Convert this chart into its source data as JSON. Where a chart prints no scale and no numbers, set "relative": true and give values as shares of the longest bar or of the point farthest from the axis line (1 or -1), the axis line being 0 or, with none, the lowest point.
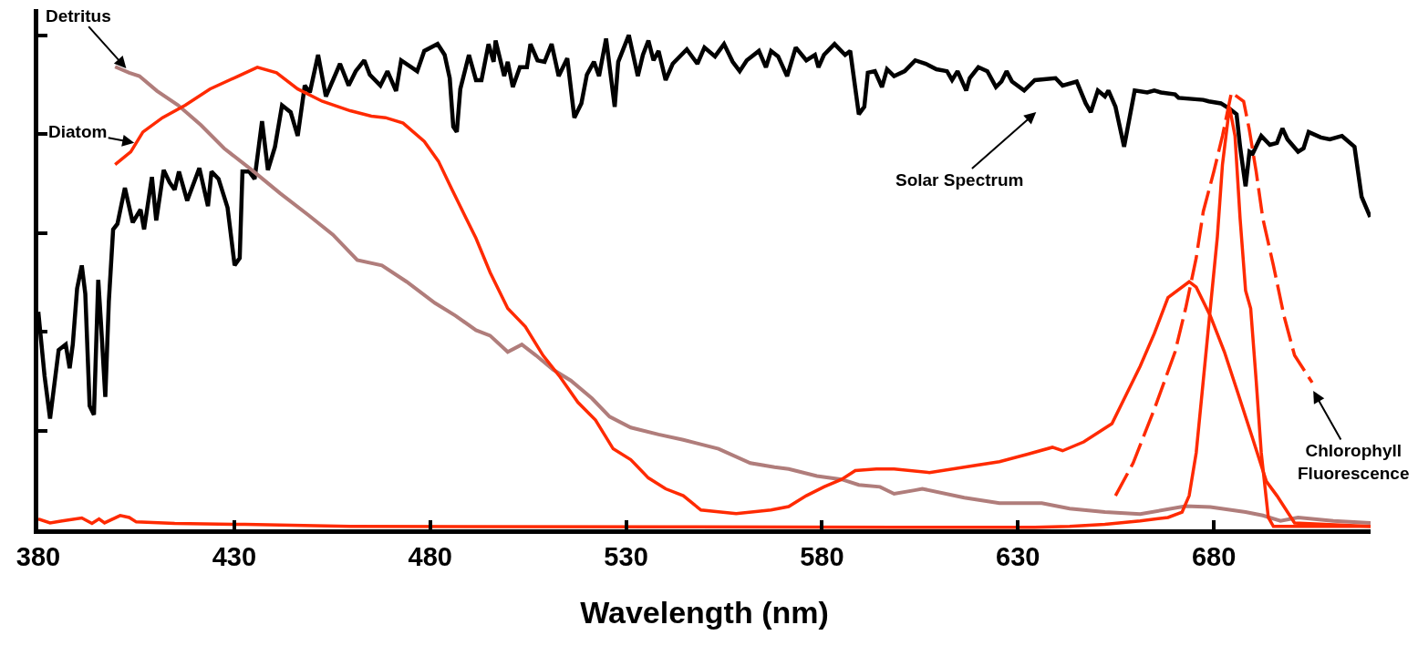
{
  "chart_data": {
    "type": "line",
    "relative": true,
    "xlabel": "Wavelength (nm)",
    "xlim": [
      380,
      720
    ],
    "xticks": [
      380,
      430,
      480,
      530,
      580,
      630,
      680
    ],
    "marker": "none",
    "line_style": "solid",
    "annotations": [
      "Detritus",
      "Diatom",
      "Solar Spectrum",
      "Chlorophyll\nFluorescence"
    ],
    "series": [
      {
        "color": "#000000",
        "x": [
          380,
          381.6,
          383,
          385.2,
          387,
          388,
          388.8,
          389.9,
          391.1,
          392,
          393.1,
          394.2,
          395.3,
          396,
          397.1,
          398,
          399.1,
          400.2,
          402.1,
          404.1,
          406.1,
          407,
          409,
          410.1,
          412,
          413.5,
          414.8,
          415.9,
          418,
          421.1,
          423.3,
          424.2,
          426,
          428.3,
          430.1,
          431.4,
          432.1,
          433.8,
          435.2,
          437.1,
          438.6,
          440.4,
          442.2,
          444.4,
          446.2,
          448,
          449.3,
          451.4,
          453.4,
          457,
          459.2,
          461,
          463.2,
          464.6,
          467.3,
          469.1,
          471.3,
          472.6,
          476.7,
          478.5,
          481.9,
          483.7,
          485,
          485.9,
          486.8,
          487.7,
          489.9,
          491.7,
          493.1,
          494.9,
          496.2,
          496.7,
          498.9,
          499.8,
          501.1,
          502.9,
          504.7,
          505.6,
          507.4,
          509.2,
          511,
          512.8,
          515,
          516.8,
          518.6,
          520,
          521.8,
          523.1,
          524.9,
          527.1,
          528,
          530.7,
          533,
          534.3,
          535.7,
          537,
          538.3,
          540.1,
          541.9,
          545.5,
          548.2,
          550,
          552.7,
          555,
          557.2,
          559,
          560.8,
          563.9,
          565.7,
          567,
          568.8,
          571.1,
          573.3,
          576,
          578.2,
          579.1,
          580.5,
          583.2,
          585.9,
          587.2,
          589.4,
          590.8,
          591.7,
          593.5,
          595.3,
          596.6,
          598.4,
          601.1,
          603.8,
          606.5,
          609.2,
          611.9,
          613.2,
          614.6,
          616.8,
          617.7,
          619.9,
          622.2,
          624.4,
          625.8,
          627.1,
          628.5,
          631.6,
          634.3,
          639.6,
          641.4,
          645,
          647.3,
          648.6,
          650.4,
          652.2,
          653.1,
          654.9,
          657.1,
          659.8,
          663,
          664.8,
          666.5,
          670.1,
          671,
          677.3,
          678.7,
          681.8,
          684,
          685.8,
          686.7,
          688.1,
          689.1,
          689.9,
          692.1,
          694.3,
          696.1,
          697.5,
          698.8,
          701.5,
          702.9,
          704.2,
          707.3,
          709.6,
          712.7,
          715.9,
          717.7,
          719.9
        ],
        "values": [
          0.44,
          0.31,
          0.224,
          0.363,
          0.374,
          0.326,
          0.374,
          0.487,
          0.534,
          0.476,
          0.25,
          0.232,
          0.505,
          0.417,
          0.268,
          0.461,
          0.607,
          0.618,
          0.691,
          0.621,
          0.647,
          0.607,
          0.713,
          0.625,
          0.727,
          0.702,
          0.687,
          0.724,
          0.665,
          0.731,
          0.654,
          0.724,
          0.709,
          0.651,
          0.534,
          0.549,
          0.724,
          0.724,
          0.709,
          0.826,
          0.727,
          0.774,
          0.858,
          0.844,
          0.796,
          0.898,
          0.884,
          0.96,
          0.876,
          0.942,
          0.898,
          0.927,
          0.949,
          0.92,
          0.898,
          0.927,
          0.887,
          0.949,
          0.927,
          0.968,
          0.982,
          0.96,
          0.913,
          0.815,
          0.804,
          0.891,
          0.96,
          0.909,
          0.909,
          0.982,
          0.946,
          0.989,
          0.917,
          0.946,
          0.895,
          0.935,
          0.935,
          0.982,
          0.949,
          0.946,
          0.982,
          0.917,
          0.953,
          0.833,
          0.862,
          0.92,
          0.946,
          0.917,
          0.993,
          0.855,
          0.946,
          1.0,
          0.917,
          0.96,
          0.989,
          0.949,
          0.968,
          0.909,
          0.942,
          0.971,
          0.942,
          0.975,
          0.957,
          0.982,
          0.946,
          0.927,
          0.949,
          0.968,
          0.935,
          0.968,
          0.957,
          0.917,
          0.975,
          0.949,
          0.96,
          0.935,
          0.96,
          0.982,
          0.96,
          0.968,
          0.84,
          0.855,
          0.924,
          0.927,
          0.895,
          0.931,
          0.917,
          0.927,
          0.949,
          0.942,
          0.931,
          0.927,
          0.909,
          0.927,
          0.888,
          0.913,
          0.935,
          0.927,
          0.895,
          0.906,
          0.927,
          0.906,
          0.888,
          0.909,
          0.913,
          0.898,
          0.906,
          0.862,
          0.844,
          0.888,
          0.876,
          0.888,
          0.855,
          0.774,
          0.888,
          0.884,
          0.888,
          0.884,
          0.88,
          0.873,
          0.869,
          0.866,
          0.862,
          0.851,
          0.84,
          0.774,
          0.694,
          0.764,
          0.76,
          0.796,
          0.778,
          0.782,
          0.811,
          0.789,
          0.764,
          0.771,
          0.804,
          0.793,
          0.789,
          0.796,
          0.774,
          0.673,
          0.632
        ]
      },
      {
        "color": "#b07d7b",
        "x": [
          399.6,
          403.2,
          405.8,
          410.3,
          415.7,
          421.5,
          427.4,
          434.5,
          441.7,
          448.9,
          455.2,
          461.4,
          467.7,
          474,
          481.2,
          486.5,
          491.7,
          495.3,
          499.8,
          503.4,
          507,
          511.4,
          515.9,
          521.3,
          525.8,
          531.2,
          538.3,
          544.6,
          553.6,
          561.7,
          567.9,
          571.5,
          578.7,
          585,
          589.4,
          594.8,
          598.4,
          603.6,
          605.6,
          616.3,
          625.3,
          636.1,
          643.2,
          652.2,
          661.2,
          672.8,
          679.1,
          688.1,
          692.5,
          697,
          701.5,
          710.5,
          720
        ],
        "values": [
          0.936,
          0.924,
          0.917,
          0.887,
          0.858,
          0.818,
          0.771,
          0.727,
          0.68,
          0.636,
          0.596,
          0.545,
          0.534,
          0.501,
          0.458,
          0.432,
          0.403,
          0.392,
          0.359,
          0.374,
          0.352,
          0.323,
          0.301,
          0.265,
          0.228,
          0.206,
          0.192,
          0.181,
          0.163,
          0.134,
          0.126,
          0.122,
          0.108,
          0.101,
          0.09,
          0.086,
          0.072,
          0.079,
          0.082,
          0.064,
          0.053,
          0.053,
          0.042,
          0.035,
          0.031,
          0.047,
          0.045,
          0.035,
          0.028,
          0.017,
          0.024,
          0.017,
          0.013
        ]
      },
      {
        "color": "#ff2a00",
        "x": [
          399.6,
          403.6,
          406.7,
          411.7,
          417.5,
          423.8,
          431,
          435.9,
          440.8,
          446.2,
          452.5,
          459.6,
          465,
          468.6,
          473.1,
          478.5,
          482.1,
          485.6,
          489.2,
          491.7,
          495.3,
          499.8,
          504.3,
          508.8,
          513.2,
          517.7,
          522.2,
          526.7,
          531.2,
          535.7,
          540.1,
          544.6,
          549.1,
          558.1,
          567,
          571.5,
          576,
          580.5,
          585,
          588.5,
          593.9,
          598.4,
          607.4,
          616.3,
          625.3,
          632.5,
          638.8,
          641.4,
          646.8,
          654,
          657.6,
          661.2,
          664.8,
          668.3,
          673.7,
          675.5,
          679.1,
          682.7,
          686.3,
          689.9,
          693.4,
          696.1,
          700.6,
          720
        ],
        "values": [
          0.738,
          0.764,
          0.804,
          0.833,
          0.858,
          0.891,
          0.917,
          0.935,
          0.924,
          0.891,
          0.866,
          0.847,
          0.836,
          0.833,
          0.822,
          0.785,
          0.745,
          0.687,
          0.629,
          0.589,
          0.52,
          0.447,
          0.41,
          0.352,
          0.308,
          0.257,
          0.221,
          0.163,
          0.141,
          0.104,
          0.082,
          0.068,
          0.039,
          0.032,
          0.039,
          0.046,
          0.068,
          0.086,
          0.101,
          0.119,
          0.122,
          0.122,
          0.115,
          0.126,
          0.137,
          0.152,
          0.166,
          0.159,
          0.177,
          0.214,
          0.272,
          0.33,
          0.396,
          0.469,
          0.501,
          0.49,
          0.432,
          0.359,
          0.272,
          0.184,
          0.097,
          0.068,
          0.013,
          0.006
        ]
      },
      {
        "color": "#ff2a00",
        "line_style": "dashed",
        "x": [
          654.9,
          659.4,
          664.8,
          670.1,
          672.8,
          675.5,
          677.3,
          680,
          682.2,
          684.5,
          687.6,
          689,
          690.8,
          692.5,
          695.2,
          697.9,
          700.6,
          705.1
        ],
        "values": [
          0.068,
          0.134,
          0.243,
          0.359,
          0.447,
          0.549,
          0.643,
          0.724,
          0.796,
          0.884,
          0.866,
          0.811,
          0.724,
          0.629,
          0.534,
          0.432,
          0.352,
          0.297
        ]
      },
      {
        "color": "#ff2a00",
        "x": [
          380,
          383,
          386.1,
          391.1,
          393.7,
          395.5,
          396.9,
          400.9,
          403.2,
          405,
          414.8,
          432.7,
          459.6,
          540,
          598.4,
          634.3,
          643.2,
          652.2,
          661.2,
          668.3,
          671.9,
          673.7,
          675.5,
          677.3,
          679.1,
          680.9,
          682.2,
          684,
          685.4,
          686.7,
          688.1,
          689.4,
          690.8,
          692.1,
          693.9,
          695.2,
          720
        ],
        "values": [
          0.021,
          0.013,
          0.017,
          0.023,
          0.012,
          0.021,
          0.013,
          0.028,
          0.024,
          0.015,
          0.012,
          0.01,
          0.006,
          0.005,
          0.004,
          0.004,
          0.006,
          0.01,
          0.017,
          0.024,
          0.035,
          0.068,
          0.155,
          0.301,
          0.447,
          0.592,
          0.738,
          0.855,
          0.796,
          0.629,
          0.483,
          0.447,
          0.301,
          0.155,
          0.024,
          0.006,
          0.006
        ]
      }
    ]
  }
}
